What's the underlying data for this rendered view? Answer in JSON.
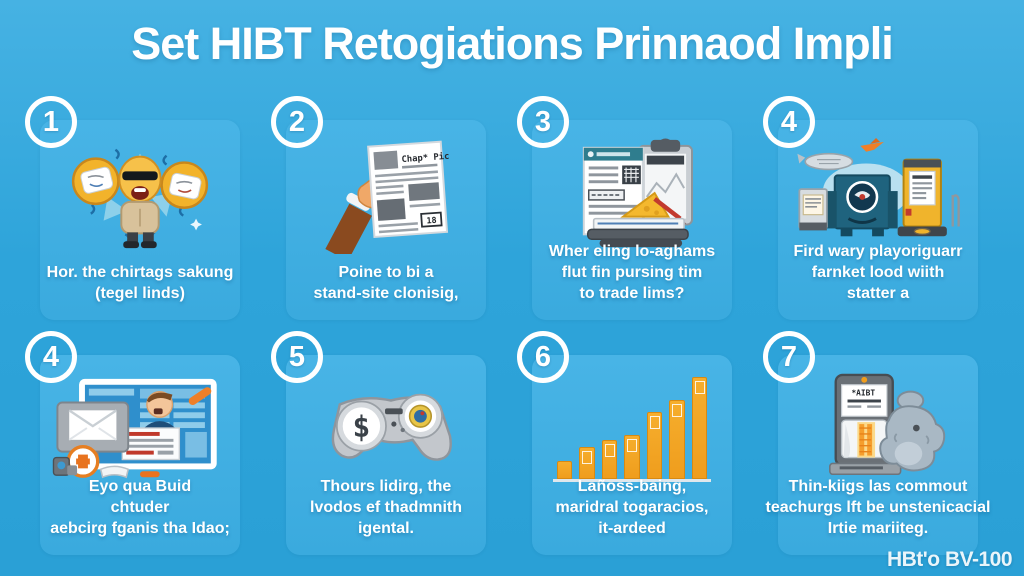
{
  "title": "Set HIBT Retogiations Prinnaod Impli",
  "watermark": "HBt'o BV-100",
  "colors": {
    "background_top": "#46b2e3",
    "background_bottom": "#2aa0d6",
    "tile": "#3faede",
    "text": "#ffffff",
    "bar_orange": "#f5a828",
    "kiosk_yellow": "#f0b42c",
    "machine_teal": "#1f637e"
  },
  "panels": [
    {
      "number": "1",
      "illustration": "mascot-holding-coins",
      "caption_lines": [
        "Hor. the chirtags sakung",
        "(tegel linds)",
        ""
      ]
    },
    {
      "number": "2",
      "illustration": "hand-holding-newspaper",
      "doc_header": "Chap* Pic",
      "doc_badge": "18",
      "caption_lines": [
        "Poine to bi a",
        "stand-site clonisig,",
        ""
      ]
    },
    {
      "number": "3",
      "illustration": "report-clipboard-books",
      "caption_lines": [
        "Wher eling lo-aghams",
        "flut fin pursing tim",
        "to trade lims?"
      ]
    },
    {
      "number": "4",
      "illustration": "factory-kiosk-machines",
      "caption_lines": [
        "Fird wary playoriguarr",
        "farnket lood wiith",
        "statter a"
      ]
    },
    {
      "number": "4",
      "illustration": "browser-screen-man",
      "caption_lines": [
        "Eyo qua Buid",
        "chtuder",
        "aebcirg fganis tha Idao;"
      ]
    },
    {
      "number": "5",
      "illustration": "game-controller-dollar",
      "controller_symbol": "$",
      "caption_lines": [
        "Thours lidirg, the",
        "lvodos ef thadmnith",
        "igental."
      ]
    },
    {
      "number": "6",
      "illustration": "growth-bar-chart",
      "bars": [
        16,
        30,
        37,
        42,
        65,
        77,
        100
      ],
      "caption_lines": [
        "Lañoss-baing,",
        "maridral togaracios,",
        "it-ardeed"
      ]
    },
    {
      "number": "7",
      "illustration": "atm-machine-elephant",
      "atm_screen_text": "*AIBT",
      "caption_lines": [
        "Thin-kiigs las commout",
        "teachurgs lft be unstenicacial",
        "Irtie mariiteg."
      ]
    }
  ]
}
